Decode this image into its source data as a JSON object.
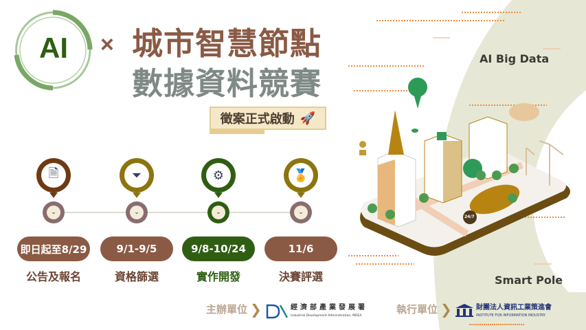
{
  "logo": {
    "text": "AI",
    "color": "#2f5e12"
  },
  "title": {
    "times": "×",
    "line1": "城市智慧節點",
    "line2": "數據資料競賽"
  },
  "badge": {
    "label": "徵案正式啟動",
    "icon": "rocket-icon"
  },
  "timeline": [
    {
      "icon": "document-search-icon",
      "date": "即日起至8/29",
      "label": "公告及報名",
      "color": "#6e3a13",
      "pill": "#8b5a44",
      "dot": "#8a6c6e"
    },
    {
      "icon": "filter-icon",
      "date": "9/1-9/5",
      "label": "資格篩選",
      "color": "#8c7410",
      "pill": "#8b5a44",
      "dot": "#8a6c6e"
    },
    {
      "icon": "gear-search-icon",
      "date": "9/8-10/24",
      "label": "實作開發",
      "color": "#2f5e12",
      "pill": "#2f5e12",
      "dot": "#2f5e12"
    },
    {
      "icon": "medal-icon",
      "date": "11/6",
      "label": "決賽評選",
      "color": "#8c7410",
      "pill": "#8b5a44",
      "dot": "#8a6c6e"
    }
  ],
  "illustration": {
    "label_top": "AI Big Data",
    "label_bottom": "Smart Pole",
    "badge": "24/7"
  },
  "footer": {
    "organizer_label": "主辦單位",
    "organizer_name": "經濟部產業發展署",
    "organizer_name_en": "Industrial Development Administration, MOEA",
    "organizer_logo": "DA",
    "executor_label": "執行單位",
    "executor_name": "財團法人資訊工業策進會",
    "executor_name_en": "INSTITUTE FOR INFORMATION INDUSTRY"
  },
  "colors": {
    "brown": "#8b5a44",
    "green": "#2f5e12",
    "beige": "#e6e8d6",
    "gray": "#7f8985"
  }
}
